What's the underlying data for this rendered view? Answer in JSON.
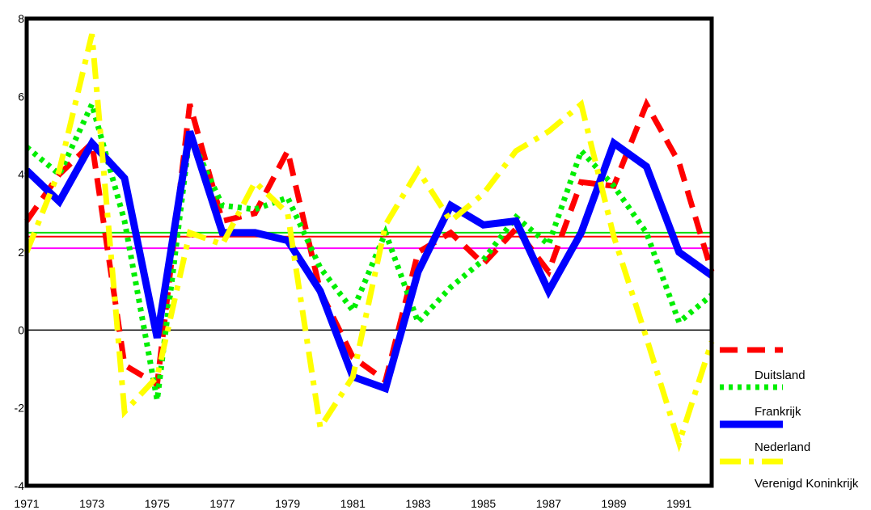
{
  "chart_data": {
    "type": "line",
    "title": "",
    "xlabel": "",
    "ylabel": "",
    "x": [
      1971,
      1972,
      1973,
      1974,
      1975,
      1976,
      1977,
      1978,
      1979,
      1980,
      1981,
      1982,
      1983,
      1984,
      1985,
      1986,
      1987,
      1988,
      1989,
      1990,
      1991,
      1992
    ],
    "xticks": [
      "1971",
      "1973",
      "1975",
      "1977",
      "1979",
      "1981",
      "1983",
      "1985",
      "1987",
      "1989",
      "1991"
    ],
    "yticks": [
      "8",
      "6",
      "4",
      "2",
      "0",
      "-2",
      "-4"
    ],
    "ylim": [
      -4,
      8
    ],
    "xlim": [
      1971,
      1992
    ],
    "grid": false,
    "legend_position": "right",
    "legend_labels": [
      "Duitsland",
      "Frankrijk",
      "Nederland",
      "Verenigd Koninkrijk"
    ],
    "series": [
      {
        "color": "#ff0000",
        "style": "dashed",
        "values": [
          2.8,
          4.0,
          4.8,
          -0.9,
          -1.4,
          5.8,
          2.8,
          3.0,
          4.6,
          1.0,
          -0.7,
          -1.3,
          2.0,
          2.5,
          1.7,
          2.6,
          1.5,
          3.8,
          3.7,
          5.8,
          4.3,
          1.5
        ]
      },
      {
        "color": "#00ee00",
        "style": "dotted",
        "values": [
          4.7,
          4.0,
          5.8,
          2.8,
          -1.8,
          5.0,
          3.2,
          3.1,
          3.4,
          1.6,
          0.5,
          2.5,
          0.2,
          1.1,
          1.8,
          2.9,
          2.2,
          4.6,
          3.7,
          2.5,
          0.2,
          0.9
        ]
      },
      {
        "color": "#0000ff",
        "style": "solid",
        "values": [
          4.1,
          3.3,
          4.8,
          3.9,
          -0.2,
          5.1,
          2.5,
          2.5,
          2.3,
          1.0,
          -1.2,
          -1.5,
          1.5,
          3.2,
          2.7,
          2.8,
          1.0,
          2.5,
          4.8,
          4.2,
          2.0,
          1.4
        ]
      },
      {
        "color": "#ffff00",
        "style": "dashdot",
        "values": [
          2.0,
          4.1,
          7.6,
          -2.1,
          -1.2,
          2.5,
          2.2,
          3.8,
          3.0,
          -2.5,
          -1.2,
          2.7,
          4.1,
          2.8,
          3.5,
          4.6,
          5.1,
          5.8,
          2.4,
          -0.2,
          -2.9,
          -0.3
        ]
      }
    ],
    "reference_lines": [
      {
        "value": 2.5,
        "color": "#00dd00"
      },
      {
        "value": 2.4,
        "color": "#ff0000"
      },
      {
        "value": 2.1,
        "color": "#ff00ff"
      },
      {
        "value": 0,
        "color": "#000000"
      }
    ]
  }
}
